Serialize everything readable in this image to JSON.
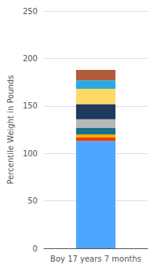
{
  "chart_data": {
    "type": "bar",
    "categories": [
      "Boy 17 years 7 months"
    ],
    "ylabel": "Percentile Weight in Pounds",
    "stacked": true,
    "series": [
      {
        "color": "#4da6ff",
        "values": [
          113
        ]
      },
      {
        "color": "#e8400a",
        "values": [
          4
        ]
      },
      {
        "color": "#f5a800",
        "values": [
          3
        ]
      },
      {
        "color": "#1a6e8a",
        "values": [
          7
        ]
      },
      {
        "color": "#b8b8b8",
        "values": [
          9
        ]
      },
      {
        "color": "#1e3a5f",
        "values": [
          16
        ]
      },
      {
        "color": "#ffd966",
        "values": [
          16
        ]
      },
      {
        "color": "#29abe2",
        "values": [
          9
        ]
      },
      {
        "color": "#b05c3b",
        "values": [
          11
        ]
      }
    ],
    "ylim": [
      0,
      250
    ],
    "yticks": [
      0,
      50,
      100,
      150,
      200,
      250
    ],
    "grid": true
  }
}
